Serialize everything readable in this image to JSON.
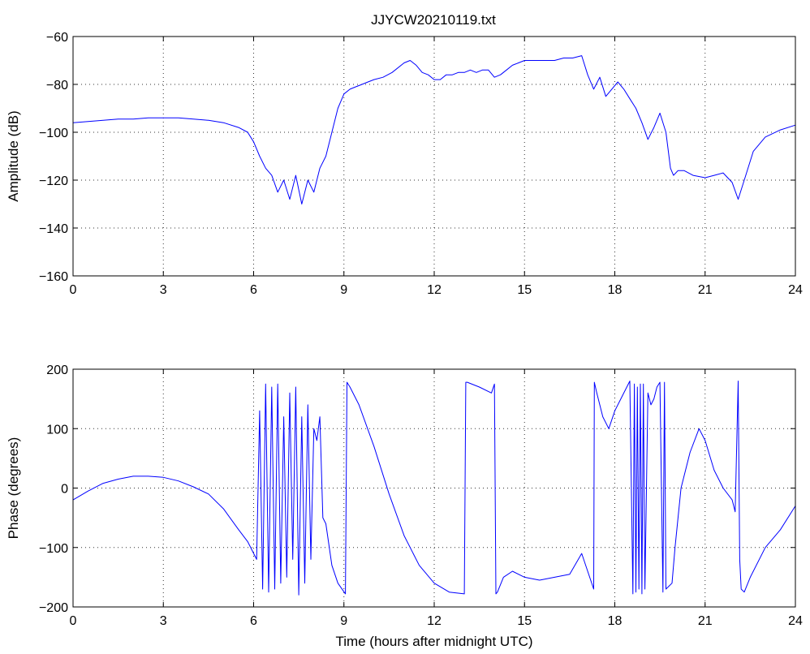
{
  "chart_data": [
    {
      "type": "line",
      "title": "JJYCW20210119.txt",
      "xlabel": "",
      "ylabel": "Amplitude (dB)",
      "xlim": [
        0,
        24
      ],
      "ylim": [
        -160,
        -60
      ],
      "xticks": [
        0,
        3,
        6,
        9,
        12,
        15,
        18,
        21,
        24
      ],
      "yticks": [
        -60,
        -80,
        -100,
        -120,
        -140,
        -160
      ],
      "ytick_labels": [
        "−60",
        "−80",
        "−100",
        "−120",
        "−140",
        "−160"
      ],
      "grid": true,
      "color": "#0000ff",
      "series": [
        {
          "x": [
            0,
            0.5,
            1,
            1.5,
            2,
            2.5,
            3,
            3.5,
            4,
            4.5,
            5,
            5.5,
            5.8,
            6,
            6.2,
            6.4,
            6.6,
            6.8,
            7,
            7.2,
            7.4,
            7.6,
            7.8,
            8,
            8.2,
            8.4,
            8.6,
            8.8,
            9,
            9.2,
            9.4,
            9.6,
            9.8,
            10,
            10.3,
            10.6,
            11,
            11.2,
            11.4,
            11.6,
            11.8,
            12,
            12.2,
            12.4,
            12.6,
            12.8,
            13,
            13.2,
            13.4,
            13.6,
            13.8,
            14,
            14.2,
            14.4,
            14.6,
            14.8,
            15,
            15.3,
            15.6,
            16,
            16.3,
            16.6,
            16.9,
            17.1,
            17.3,
            17.5,
            17.7,
            17.9,
            18.1,
            18.3,
            18.5,
            18.7,
            18.9,
            19.1,
            19.3,
            19.5,
            19.7,
            19.85,
            19.95,
            20.1,
            20.3,
            20.6,
            21,
            21.3,
            21.6,
            21.9,
            22.1,
            22.3,
            22.6,
            23,
            23.5,
            24
          ],
          "values": [
            -96,
            -95.5,
            -95,
            -94.5,
            -94.5,
            -94,
            -94,
            -94,
            -94.5,
            -95,
            -96,
            -98,
            -100,
            -104,
            -110,
            -115,
            -118,
            -125,
            -120,
            -128,
            -118,
            -130,
            -120,
            -125,
            -115,
            -110,
            -100,
            -90,
            -84,
            -82,
            -81,
            -80,
            -79,
            -78,
            -77,
            -75,
            -71,
            -70,
            -72,
            -75,
            -76,
            -78,
            -78,
            -76,
            -76,
            -75,
            -75,
            -74,
            -75,
            -74,
            -74,
            -77,
            -76,
            -74,
            -72,
            -71,
            -70,
            -70,
            -70,
            -70,
            -69,
            -69,
            -68,
            -76,
            -82,
            -77,
            -85,
            -82,
            -79,
            -82,
            -86,
            -90,
            -96,
            -103,
            -98,
            -92,
            -100,
            -115,
            -118,
            -116,
            -116,
            -118,
            -119,
            -118,
            -117,
            -121,
            -128,
            -120,
            -108,
            -102,
            -99,
            -97
          ]
        }
      ]
    },
    {
      "type": "line",
      "title": "",
      "xlabel": "Time (hours after midnight UTC)",
      "ylabel": "Phase (degrees)",
      "xlim": [
        0,
        24
      ],
      "ylim": [
        -200,
        200
      ],
      "xticks": [
        0,
        3,
        6,
        9,
        12,
        15,
        18,
        21,
        24
      ],
      "yticks": [
        200,
        100,
        0,
        -100,
        -200
      ],
      "ytick_labels": [
        "200",
        "100",
        "0",
        "−100",
        "−200"
      ],
      "grid": true,
      "color": "#0000ff",
      "series": [
        {
          "x": [
            0,
            0.5,
            1,
            1.5,
            2,
            2.5,
            3,
            3.5,
            4,
            4.5,
            5,
            5.5,
            5.8,
            6.1,
            6.2,
            6.3,
            6.4,
            6.5,
            6.6,
            6.7,
            6.8,
            6.9,
            7,
            7.1,
            7.2,
            7.3,
            7.4,
            7.5,
            7.6,
            7.7,
            7.8,
            7.9,
            8,
            8.1,
            8.2,
            8.3,
            8.4,
            8.6,
            8.8,
            9.05,
            9.1,
            9.2,
            9.5,
            10,
            10.5,
            11,
            11.5,
            12,
            12.5,
            13,
            13.05,
            13.1,
            13.5,
            13.9,
            14,
            14.05,
            14.1,
            14.3,
            14.6,
            15,
            15.5,
            16,
            16.5,
            16.9,
            17.3,
            17.32,
            17.4,
            17.6,
            17.8,
            18,
            18.2,
            18.5,
            18.6,
            18.65,
            18.7,
            18.75,
            18.8,
            18.85,
            18.9,
            18.95,
            19,
            19.1,
            19.2,
            19.3,
            19.4,
            19.5,
            19.6,
            19.65,
            19.7,
            19.9,
            20,
            20.2,
            20.5,
            20.8,
            21,
            21.3,
            21.6,
            21.9,
            22,
            22.1,
            22.15,
            22.2,
            22.3,
            22.5,
            23,
            23.5,
            24
          ],
          "values": [
            -20,
            -5,
            8,
            15,
            20,
            20,
            18,
            12,
            2,
            -10,
            -35,
            -70,
            -90,
            -120,
            130,
            -170,
            175,
            -175,
            170,
            -170,
            175,
            -160,
            120,
            -150,
            160,
            -120,
            170,
            -180,
            120,
            -160,
            140,
            -120,
            100,
            80,
            120,
            -50,
            -60,
            -130,
            -160,
            -178,
            178,
            170,
            140,
            70,
            -10,
            -80,
            -130,
            -160,
            -175,
            -178,
            178,
            178,
            170,
            160,
            175,
            -178,
            -175,
            -150,
            -140,
            -150,
            -155,
            -150,
            -145,
            -110,
            -170,
            178,
            160,
            120,
            100,
            130,
            150,
            180,
            -178,
            175,
            -175,
            170,
            -170,
            175,
            -178,
            175,
            -170,
            160,
            140,
            150,
            170,
            178,
            -175,
            178,
            -170,
            -160,
            -100,
            0,
            60,
            100,
            80,
            30,
            0,
            -20,
            -40,
            180,
            -120,
            -170,
            -175,
            -150,
            -100,
            -70,
            -30
          ]
        }
      ]
    }
  ]
}
